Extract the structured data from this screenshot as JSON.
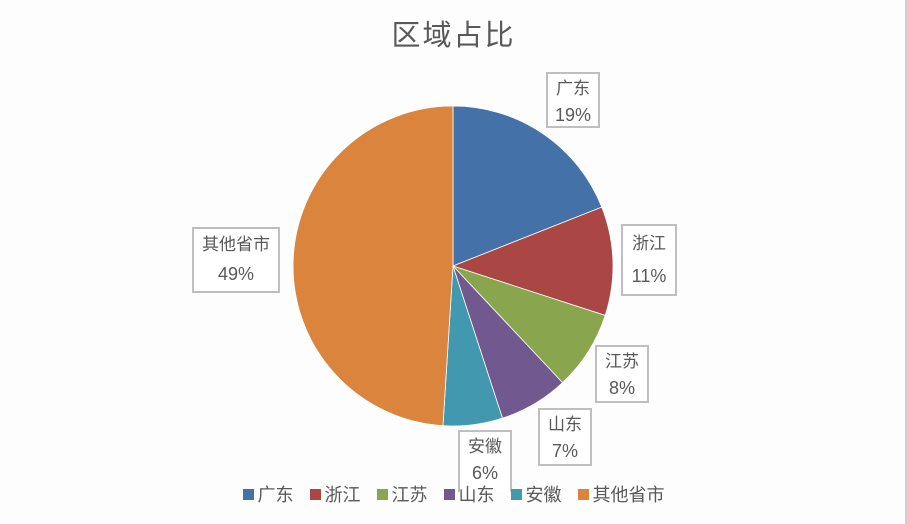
{
  "chart_data": {
    "type": "pie",
    "title": "区域占比",
    "categories": [
      "广东",
      "浙江",
      "江苏",
      "山东",
      "安徽",
      "其他省市"
    ],
    "values": [
      19,
      11,
      8,
      7,
      6,
      49
    ],
    "value_format": "percent",
    "colors": [
      "#4472a8",
      "#aa4643",
      "#89a54e",
      "#71588f",
      "#4198af",
      "#db843d"
    ],
    "labels": [
      {
        "name": "广东",
        "pct": "19%"
      },
      {
        "name": "浙江",
        "pct": "11%"
      },
      {
        "name": "江苏",
        "pct": "8%"
      },
      {
        "name": "山东",
        "pct": "7%"
      },
      {
        "name": "安徽",
        "pct": "6%"
      },
      {
        "name": "其他省市",
        "pct": "49%"
      }
    ],
    "legend_position": "bottom",
    "start_angle_deg": 0,
    "direction": "clockwise"
  },
  "legend": {
    "items": [
      {
        "label": "广东",
        "color": "#4472a8"
      },
      {
        "label": "浙江",
        "color": "#aa4643"
      },
      {
        "label": "江苏",
        "color": "#89a54e"
      },
      {
        "label": "山东",
        "color": "#71588f"
      },
      {
        "label": "安徽",
        "color": "#4198af"
      },
      {
        "label": "其他省市",
        "color": "#db843d"
      }
    ]
  }
}
